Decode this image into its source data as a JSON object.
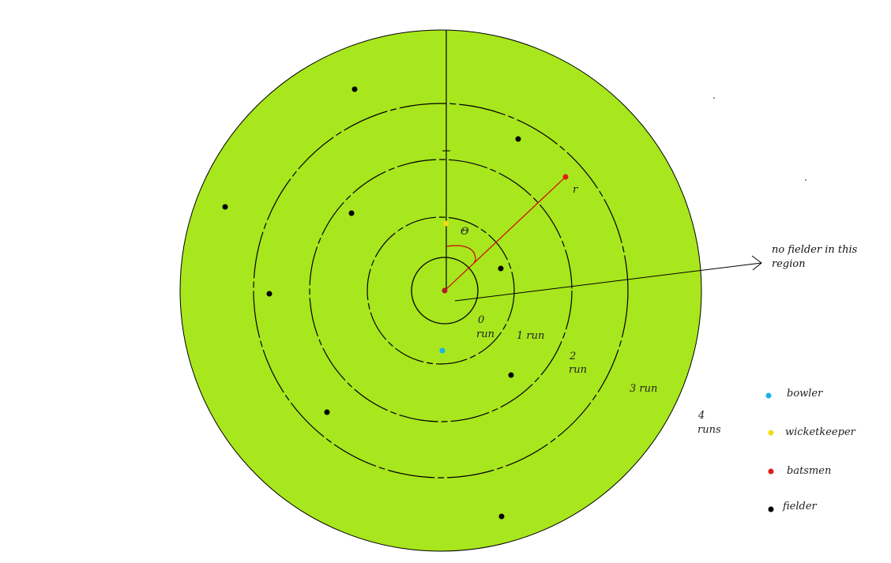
{
  "colors": {
    "field": "#a8e61d",
    "outline": "#000000",
    "ring": "#000000",
    "batsmen": "#e21a1a",
    "bowler": "#1ab2e6",
    "wicketkeeper": "#f2dc1a",
    "fielder": "#000000",
    "radius_line": "#cc0000"
  },
  "zones": {
    "zero": "0",
    "zero_run": "run",
    "one": "1 run",
    "two": "2",
    "two_run": "run",
    "three": "3 run",
    "four": "4",
    "four_runs": "runs"
  },
  "symbols": {
    "theta": "Θ",
    "r": "r"
  },
  "annotation": {
    "line1": "no fielder in this",
    "line2": "region"
  },
  "legend": [
    {
      "label": "bowler",
      "color": "#1ab2e6"
    },
    {
      "label": "wicketkeeper",
      "color": "#f2dc1a"
    },
    {
      "label": "batsmen",
      "color": "#e21a1a"
    },
    {
      "label": "fielder",
      "color": "#000000"
    }
  ]
}
